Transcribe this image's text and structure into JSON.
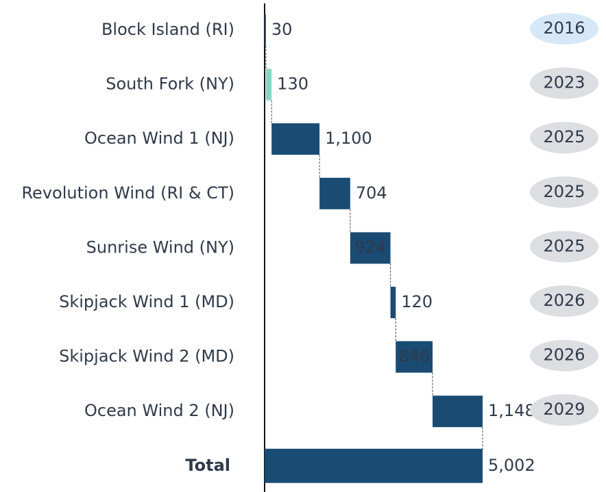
{
  "chart_data": {
    "type": "waterfall",
    "orientation": "horizontal",
    "categories": [
      "Block Island (RI)",
      "South Fork (NY)",
      "Ocean Wind 1 (NJ)",
      "Revolution Wind (RI & CT)",
      "Sunrise Wind (NY)",
      "Skipjack Wind 1 (MD)",
      "Skipjack Wind 2 (MD)",
      "Ocean Wind 2 (NJ)"
    ],
    "values": [
      30,
      130,
      1100,
      704,
      924,
      120,
      846,
      1148
    ],
    "value_labels": [
      "30",
      "130",
      "1,100",
      "704",
      "924",
      "120",
      "846",
      "1,148"
    ],
    "colors": [
      "#1a4b73",
      "#8dd3c7",
      "#1a4b73",
      "#1a4b73",
      "#1a4b73",
      "#1a4b73",
      "#1a4b73",
      "#1a4b73"
    ],
    "years": [
      "2016",
      "2023",
      "2025",
      "2025",
      "2025",
      "2026",
      "2026",
      "2029"
    ],
    "year_colors": [
      "#d6e8f7",
      "#dcdee2",
      "#dcdee2",
      "#dcdee2",
      "#dcdee2",
      "#dcdee2",
      "#dcdee2",
      "#dcdee2"
    ],
    "total": {
      "label": "Total",
      "value": 5002,
      "value_label": "5,002",
      "color": "#1a4b73"
    }
  }
}
